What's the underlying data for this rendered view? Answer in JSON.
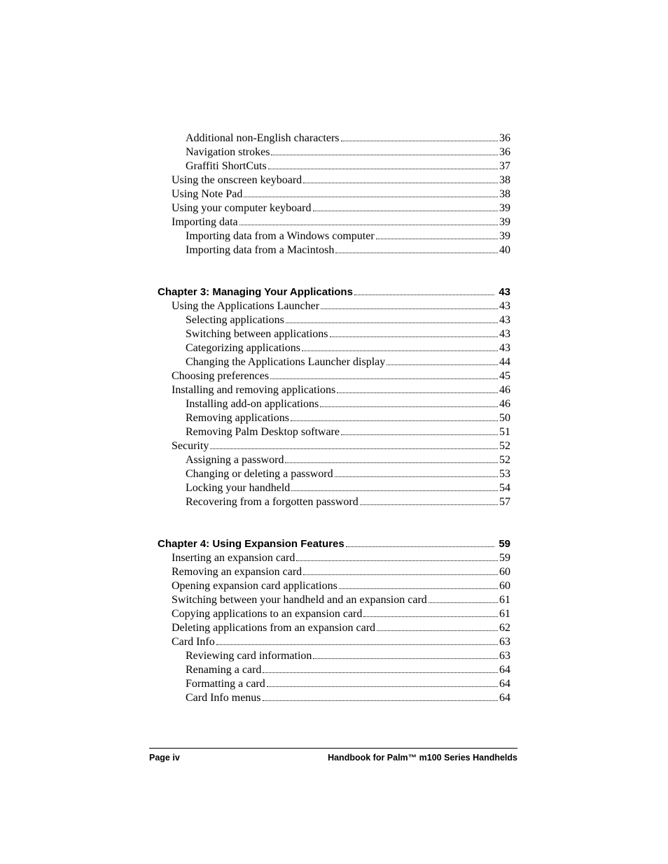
{
  "font": {
    "body_family": "Palatino Linotype",
    "body_size_pt": 12,
    "heading_family": "Arial Black",
    "heading_size_pt": 11,
    "footer_size_pt": 9.5,
    "text_color": "#000000",
    "background_color": "#ffffff"
  },
  "sections": [
    {
      "entries": [
        {
          "level": 2,
          "title": "Additional non-English characters",
          "page": "36"
        },
        {
          "level": 2,
          "title": "Navigation strokes",
          "page": "36"
        },
        {
          "level": 2,
          "title": "Graffiti ShortCuts",
          "page": "37"
        },
        {
          "level": 1,
          "title": "Using the onscreen keyboard",
          "page": "38"
        },
        {
          "level": 1,
          "title": "Using Note Pad",
          "page": "38"
        },
        {
          "level": 1,
          "title": "Using your computer keyboard",
          "page": "39"
        },
        {
          "level": 1,
          "title": "Importing data",
          "page": "39"
        },
        {
          "level": 2,
          "title": "Importing data from a Windows computer",
          "page": "39"
        },
        {
          "level": 2,
          "title": "Importing data from a Macintosh",
          "page": "40"
        }
      ]
    },
    {
      "chapter": {
        "title": "Chapter 3:  Managing Your Applications",
        "page": "43"
      },
      "entries": [
        {
          "level": 1,
          "title": "Using the Applications Launcher",
          "page": "43"
        },
        {
          "level": 2,
          "title": "Selecting applications",
          "page": "43"
        },
        {
          "level": 2,
          "title": "Switching between applications",
          "page": "43"
        },
        {
          "level": 2,
          "title": "Categorizing applications",
          "page": "43"
        },
        {
          "level": 2,
          "title": "Changing the Applications Launcher display",
          "page": "44"
        },
        {
          "level": 1,
          "title": "Choosing preferences",
          "page": "45"
        },
        {
          "level": 1,
          "title": "Installing and removing applications",
          "page": "46"
        },
        {
          "level": 2,
          "title": "Installing add-on applications",
          "page": "46"
        },
        {
          "level": 2,
          "title": "Removing applications",
          "page": "50"
        },
        {
          "level": 2,
          "title": "Removing Palm Desktop software",
          "page": "51"
        },
        {
          "level": 1,
          "title": "Security",
          "page": "52"
        },
        {
          "level": 2,
          "title": "Assigning a password",
          "page": "52"
        },
        {
          "level": 2,
          "title": "Changing or deleting a password",
          "page": "53"
        },
        {
          "level": 2,
          "title": "Locking your handheld",
          "page": "54"
        },
        {
          "level": 2,
          "title": "Recovering from a forgotten password",
          "page": "57"
        }
      ]
    },
    {
      "chapter": {
        "title": "Chapter 4:  Using Expansion Features",
        "page": "59"
      },
      "entries": [
        {
          "level": 1,
          "title": "Inserting an expansion card",
          "page": "59"
        },
        {
          "level": 1,
          "title": "Removing an expansion card",
          "page": "60"
        },
        {
          "level": 1,
          "title": "Opening expansion card applications",
          "page": "60"
        },
        {
          "level": 1,
          "title": "Switching between your handheld and an expansion card",
          "page": "61"
        },
        {
          "level": 1,
          "title": "Copying applications to an expansion card",
          "page": "61"
        },
        {
          "level": 1,
          "title": "Deleting applications from an expansion card",
          "page": "62"
        },
        {
          "level": 1,
          "title": "Card Info",
          "page": "63"
        },
        {
          "level": 2,
          "title": "Reviewing card information",
          "page": "63"
        },
        {
          "level": 2,
          "title": "Renaming a card",
          "page": "64"
        },
        {
          "level": 2,
          "title": "Formatting a card",
          "page": "64"
        },
        {
          "level": 2,
          "title": "Card Info menus",
          "page": "64"
        }
      ]
    }
  ],
  "footer": {
    "left": "Page iv",
    "right": "Handbook for Palm™ m100 Series Handhelds"
  }
}
